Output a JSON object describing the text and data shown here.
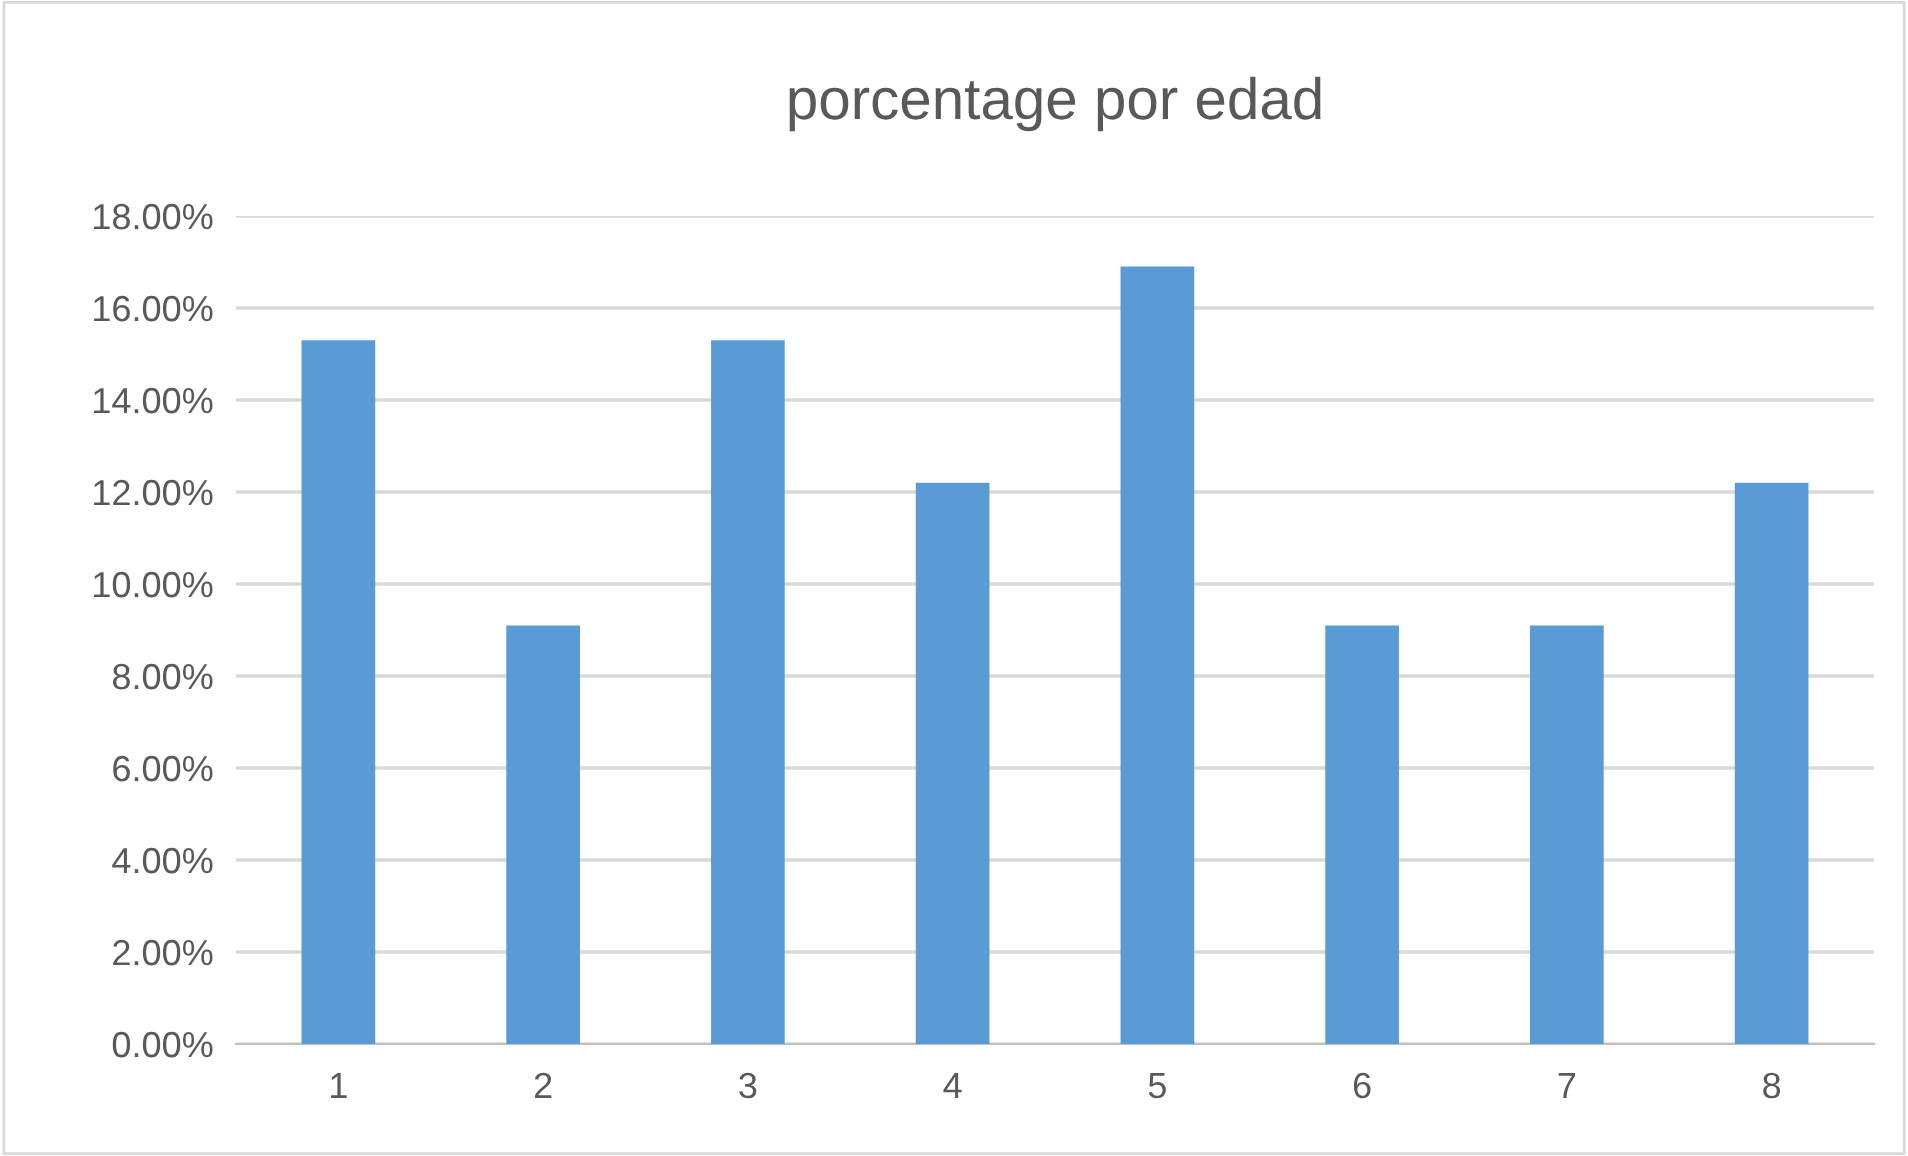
{
  "chart_data": {
    "type": "bar",
    "title": "porcentage por edad",
    "categories": [
      "1",
      "2",
      "3",
      "4",
      "5",
      "6",
      "7",
      "8"
    ],
    "values": [
      15.3,
      9.1,
      15.3,
      12.2,
      16.9,
      9.1,
      9.1,
      12.2
    ],
    "color": "#5b9bd5",
    "ylim": [
      0,
      18
    ],
    "yticks": [
      {
        "value": 0,
        "label": "0.00%"
      },
      {
        "value": 2,
        "label": "2.00%"
      },
      {
        "value": 4,
        "label": "4.00%"
      },
      {
        "value": 6,
        "label": "6.00%"
      },
      {
        "value": 8,
        "label": "8.00%"
      },
      {
        "value": 10,
        "label": "10.00%"
      },
      {
        "value": 12,
        "label": "12.00%"
      },
      {
        "value": 14,
        "label": "14.00%"
      },
      {
        "value": 16,
        "label": "16.00%"
      },
      {
        "value": 18,
        "label": "18.00%"
      }
    ],
    "grid": "y",
    "legend": false
  }
}
